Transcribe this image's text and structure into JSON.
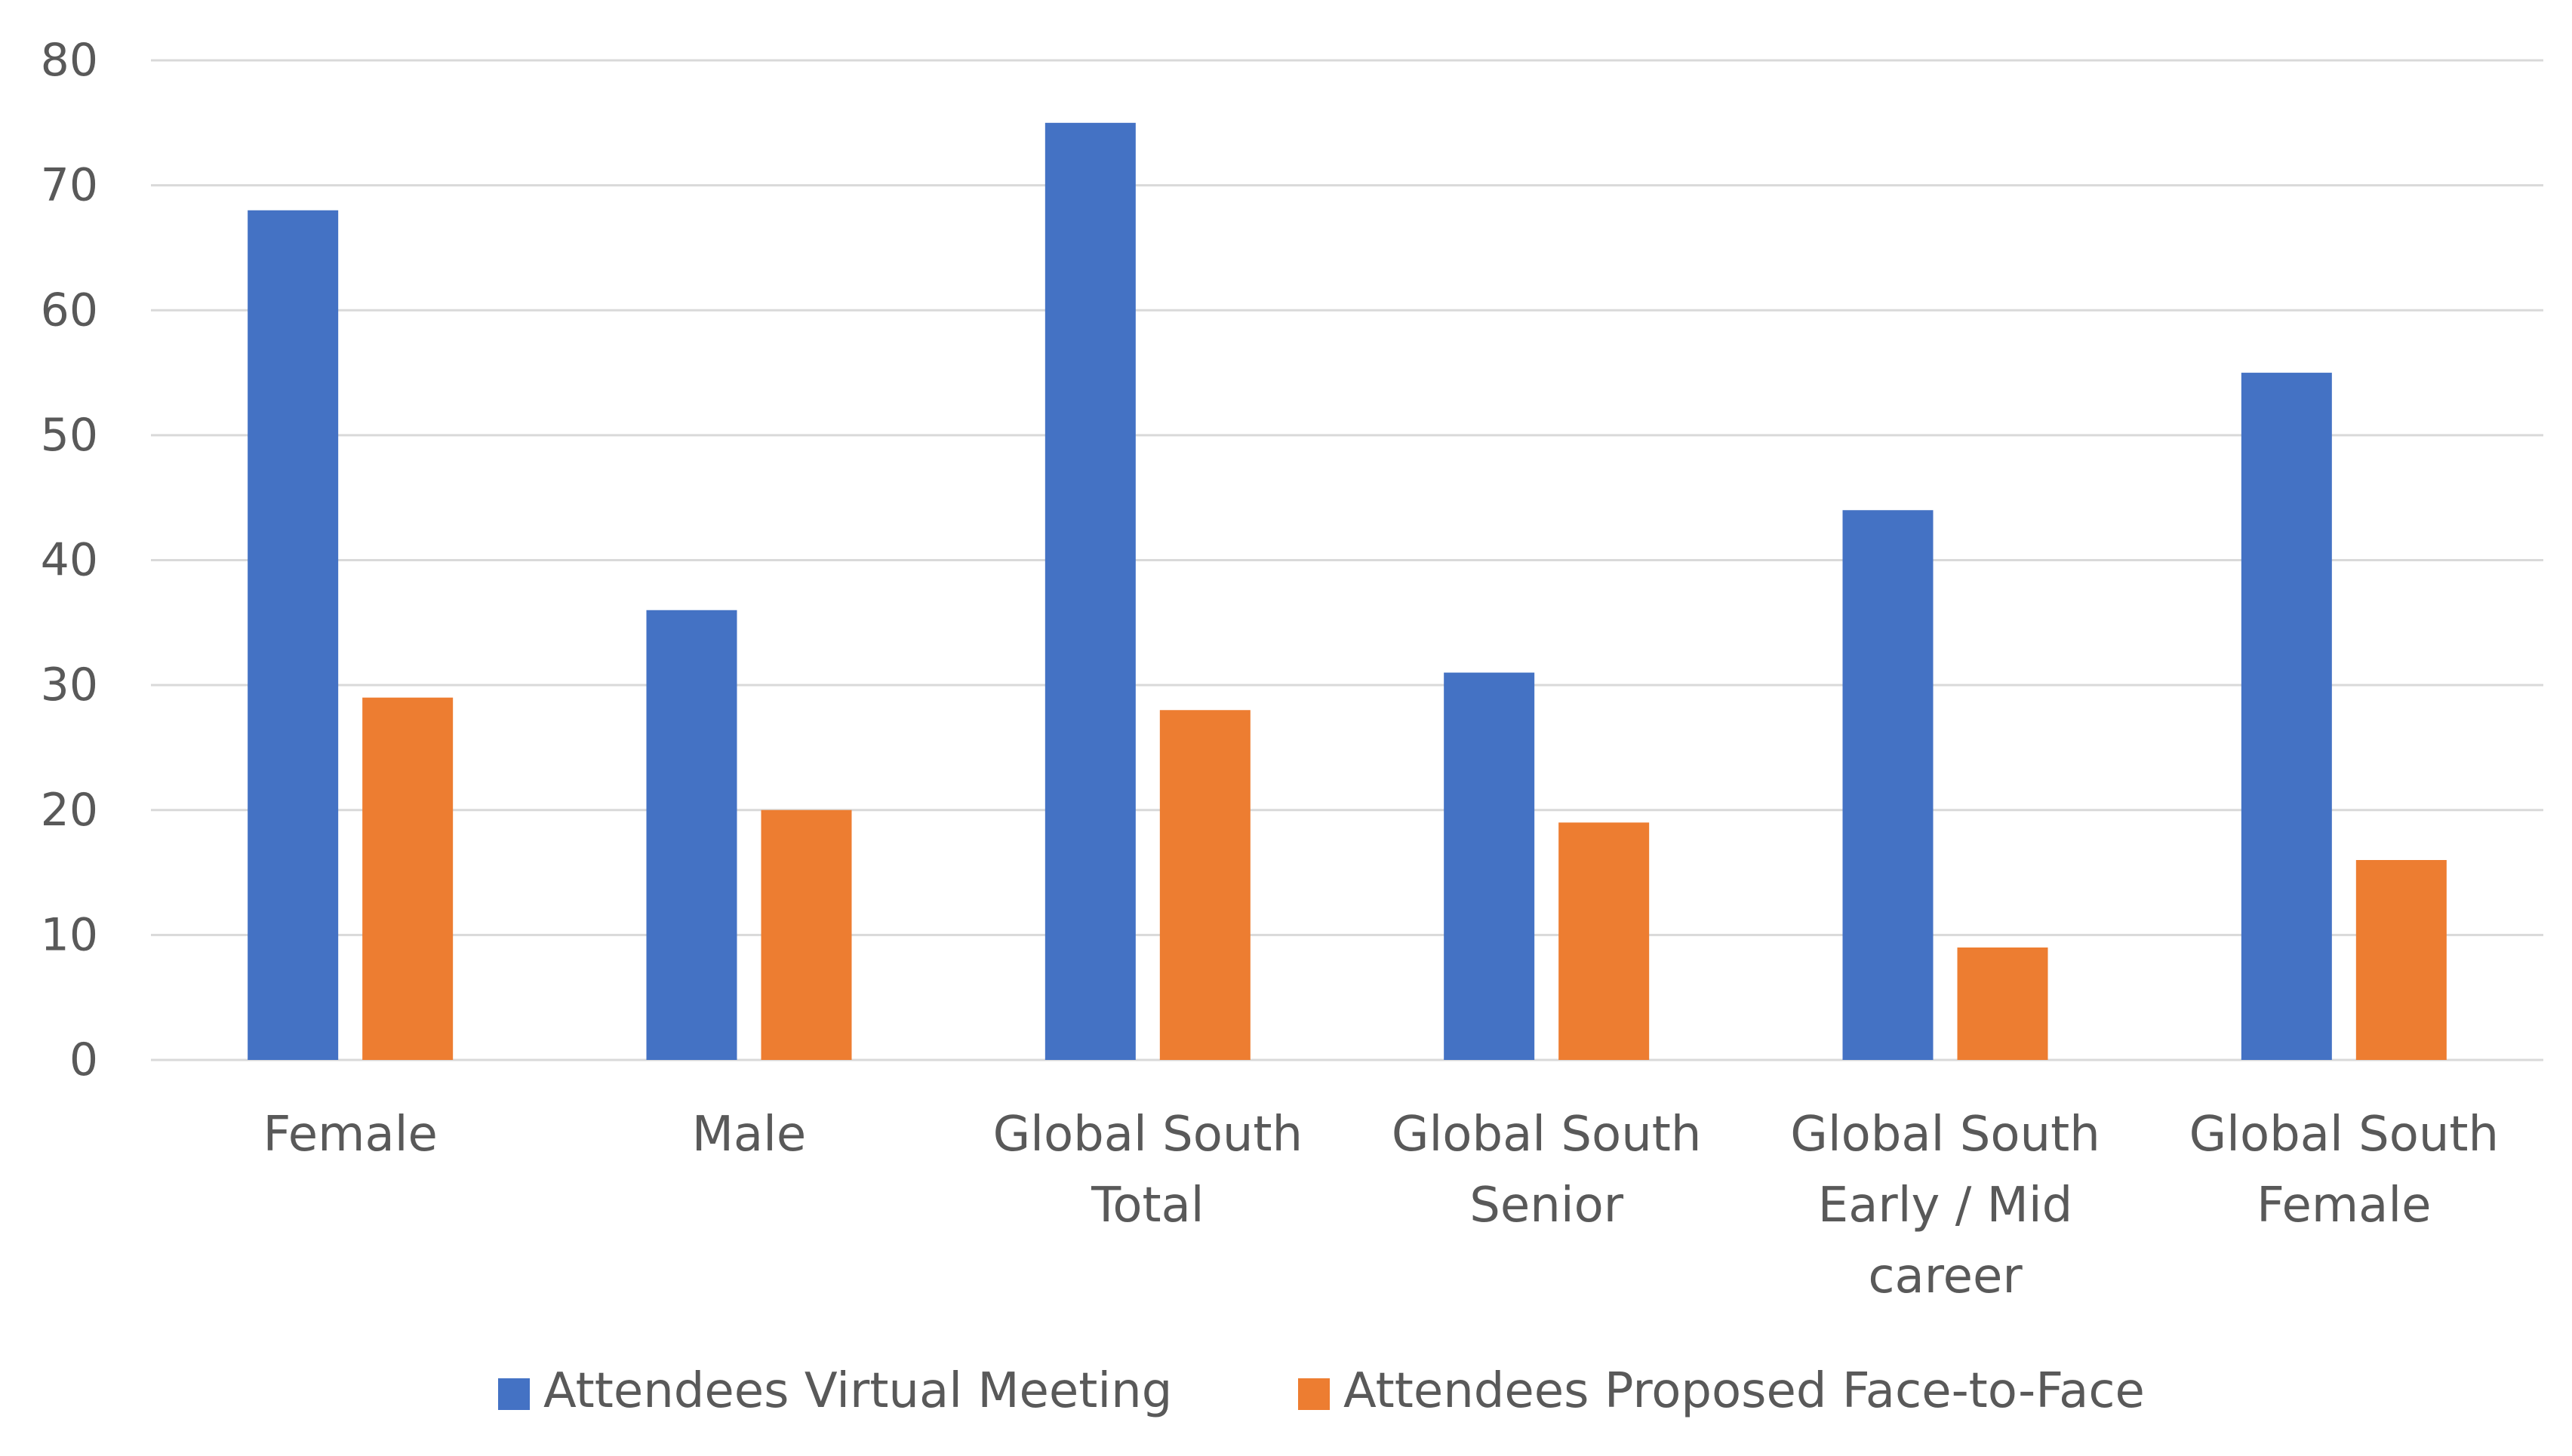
{
  "chart_data": {
    "type": "bar",
    "title": "",
    "xlabel": "",
    "ylabel": "",
    "ylim": [
      0,
      80
    ],
    "yticks": [
      0,
      10,
      20,
      30,
      40,
      50,
      60,
      70,
      80
    ],
    "grid": true,
    "legend_position": "bottom",
    "categories": [
      [
        "Female"
      ],
      [
        "Male"
      ],
      [
        "Global South",
        "Total"
      ],
      [
        "Global South",
        "Senior"
      ],
      [
        "Global South",
        "Early / Mid",
        "career"
      ],
      [
        "Global South",
        "Female"
      ]
    ],
    "series": [
      {
        "name": "Attendees Virtual Meeting",
        "color": "#4472C4",
        "values": [
          68,
          36,
          75,
          31,
          44,
          55
        ]
      },
      {
        "name": "Attendees Proposed Face-to-Face",
        "color": "#ED7D31",
        "values": [
          29,
          20,
          28,
          19,
          9,
          16
        ]
      }
    ]
  }
}
